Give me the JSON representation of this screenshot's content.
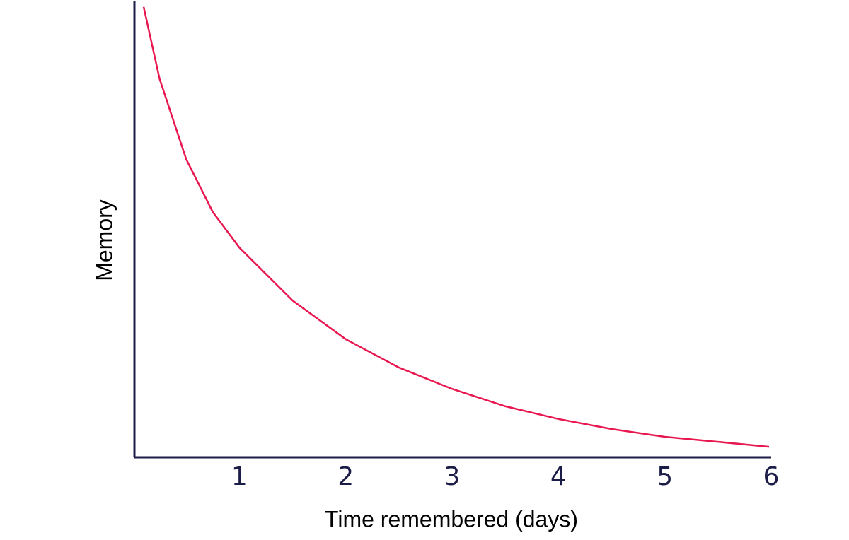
{
  "chart_data": {
    "type": "line",
    "x_label": "Time remembered (days)",
    "y_label": "Memory",
    "x": [
      0.1,
      0.25,
      0.5,
      0.75,
      1,
      1.5,
      2,
      2.5,
      3,
      3.5,
      4,
      4.5,
      5,
      5.5,
      5.98
    ],
    "values": [
      98.8,
      83,
      65.4,
      53.8,
      46,
      34.4,
      25.9,
      19.7,
      15,
      11.2,
      8.4,
      6.2,
      4.5,
      3.4,
      2.3
    ],
    "color": "#e8174f",
    "xlim": [
      0,
      6
    ],
    "xticks": [
      1,
      2,
      3,
      4,
      5,
      6
    ],
    "ylim": [
      0,
      100
    ]
  }
}
